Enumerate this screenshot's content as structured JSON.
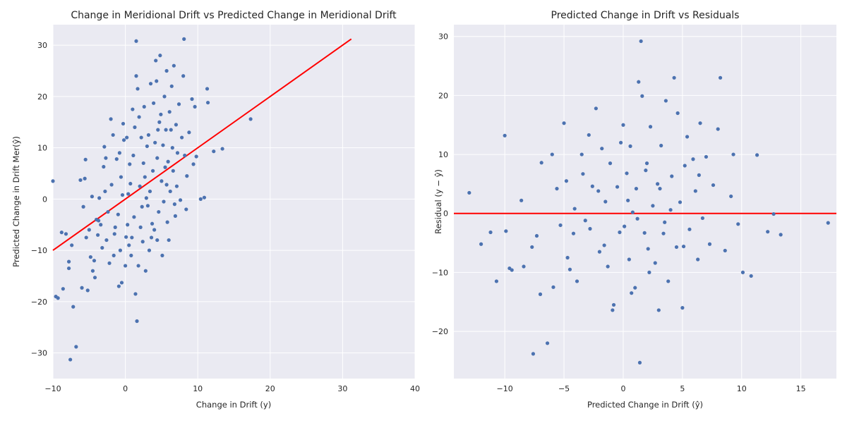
{
  "chart_data": [
    {
      "type": "scatter",
      "title": "Change in Meridional Drift vs Predicted Change in Meridional Drift",
      "xlabel": "Change in Drift (y)",
      "ylabel": "Predicted Change in Drift Mer(ŷ)",
      "xlim": [
        -10,
        40
      ],
      "ylim": [
        -35,
        34
      ],
      "xticks": [
        -10,
        0,
        10,
        20,
        30,
        40
      ],
      "yticks": [
        -30,
        -20,
        -10,
        0,
        10,
        20,
        30
      ],
      "grid": true,
      "point_color": "#4c72b0",
      "reference_line": {
        "color": "#ff0000",
        "x": [
          -10,
          31.2
        ],
        "y": [
          -10,
          31.2
        ]
      },
      "series": [
        {
          "values": [
            [
              -10,
              3.5
            ],
            [
              -9.6,
              -19
            ],
            [
              -9.3,
              -19.3
            ],
            [
              -8.8,
              -6.5
            ],
            [
              -8.6,
              -17.5
            ],
            [
              -7.8,
              -12.2
            ],
            [
              -7.8,
              -13.5
            ],
            [
              -7.6,
              -31.3
            ],
            [
              -7.4,
              -9
            ],
            [
              -7.2,
              -21
            ],
            [
              -6.8,
              -28.8
            ],
            [
              -6.2,
              3.7
            ],
            [
              -6,
              -17.3
            ],
            [
              -5.8,
              -1.5
            ],
            [
              -5.6,
              4
            ],
            [
              -5.4,
              -7.5
            ],
            [
              -5.2,
              -17.8
            ],
            [
              -5,
              -6
            ],
            [
              -4.8,
              -11.3
            ],
            [
              -4.6,
              0.5
            ],
            [
              -4.5,
              -14
            ],
            [
              -4.3,
              -12
            ],
            [
              -4.2,
              -15.3
            ],
            [
              -4,
              -4
            ],
            [
              -3.8,
              -7
            ],
            [
              -3.6,
              0.2
            ],
            [
              -3.4,
              -5
            ],
            [
              -3.2,
              -9.5
            ],
            [
              -3,
              6.3
            ],
            [
              -2.9,
              10.2
            ],
            [
              -2.8,
              1.5
            ],
            [
              -2.6,
              -8
            ],
            [
              -2.4,
              -2.5
            ],
            [
              -2.2,
              -12.5
            ],
            [
              -2,
              15.6
            ],
            [
              -1.9,
              2.8
            ],
            [
              -1.7,
              12.5
            ],
            [
              -1.6,
              -11
            ],
            [
              -1.4,
              -5.5
            ],
            [
              -1.2,
              7.8
            ],
            [
              -1,
              -3
            ],
            [
              -0.9,
              -17
            ],
            [
              -0.8,
              9
            ],
            [
              -0.7,
              -10
            ],
            [
              -0.5,
              -16.3
            ],
            [
              -0.3,
              14.7
            ],
            [
              -0.2,
              11.5
            ],
            [
              0,
              -13
            ],
            [
              0.2,
              12
            ],
            [
              0.3,
              -5
            ],
            [
              0.4,
              1
            ],
            [
              0.5,
              -9
            ],
            [
              0.6,
              6.8
            ],
            [
              0.7,
              3
            ],
            [
              0.8,
              -11
            ],
            [
              1,
              17.5
            ],
            [
              1.1,
              8.5
            ],
            [
              1.2,
              -3.5
            ],
            [
              1.3,
              14
            ],
            [
              1.5,
              30.8
            ],
            [
              1.5,
              24
            ],
            [
              1.6,
              -23.8
            ],
            [
              1.7,
              21.5
            ],
            [
              1.8,
              -13
            ],
            [
              1.9,
              16
            ],
            [
              2,
              2.5
            ],
            [
              2.1,
              -5.5
            ],
            [
              2.2,
              12
            ],
            [
              2.4,
              -8.3
            ],
            [
              2.5,
              7
            ],
            [
              2.6,
              18
            ],
            [
              2.7,
              4.3
            ],
            [
              2.8,
              -14
            ],
            [
              3,
              10.3
            ],
            [
              3.1,
              -1.3
            ],
            [
              3.2,
              12.5
            ],
            [
              3.3,
              -10
            ],
            [
              3.4,
              1.5
            ],
            [
              3.5,
              22.5
            ],
            [
              3.6,
              -7.5
            ],
            [
              3.8,
              5.5
            ],
            [
              3.9,
              18.7
            ],
            [
              4,
              -6
            ],
            [
              4.1,
              11
            ],
            [
              4.2,
              27
            ],
            [
              4.3,
              23
            ],
            [
              4.4,
              8
            ],
            [
              4.5,
              13.5
            ],
            [
              4.6,
              -2.5
            ],
            [
              4.7,
              15
            ],
            [
              4.8,
              28
            ],
            [
              4.9,
              16.5
            ],
            [
              5,
              3.5
            ],
            [
              5.1,
              -11
            ],
            [
              5.2,
              10.5
            ],
            [
              5.3,
              -0.5
            ],
            [
              5.4,
              20
            ],
            [
              5.5,
              6.2
            ],
            [
              5.6,
              13.5
            ],
            [
              5.7,
              25
            ],
            [
              5.8,
              -4.5
            ],
            [
              5.9,
              7.3
            ],
            [
              6,
              -8
            ],
            [
              6.1,
              17
            ],
            [
              6.2,
              1.5
            ],
            [
              6.3,
              13.5
            ],
            [
              6.4,
              22
            ],
            [
              6.5,
              10
            ],
            [
              6.6,
              5.5
            ],
            [
              6.7,
              26
            ],
            [
              6.8,
              -1
            ],
            [
              7,
              14.5
            ],
            [
              7.1,
              2.5
            ],
            [
              7.2,
              9
            ],
            [
              7.4,
              18.5
            ],
            [
              7.6,
              -0.2
            ],
            [
              7.8,
              12
            ],
            [
              8,
              24
            ],
            [
              8.1,
              31.2
            ],
            [
              8.2,
              8.5
            ],
            [
              8.4,
              -2
            ],
            [
              8.5,
              4.5
            ],
            [
              8.8,
              13
            ],
            [
              9.2,
              19.5
            ],
            [
              9.4,
              6.8
            ],
            [
              9.6,
              18
            ],
            [
              9.8,
              8.3
            ],
            [
              10.4,
              0
            ],
            [
              10.9,
              0.3
            ],
            [
              11.3,
              21.5
            ],
            [
              11.4,
              18.8
            ],
            [
              12.2,
              9.3
            ],
            [
              13.4,
              9.8
            ],
            [
              17.3,
              15.6
            ],
            [
              -8.2,
              -6.8
            ],
            [
              -5.5,
              7.7
            ],
            [
              -3.7,
              -4.2
            ],
            [
              -2.7,
              8
            ],
            [
              -1.5,
              -6.8
            ],
            [
              -0.6,
              4.3
            ],
            [
              0.1,
              -7.4
            ],
            [
              0.9,
              -7.5
            ],
            [
              2.3,
              -1.5
            ],
            [
              2.9,
              0.2
            ],
            [
              3.7,
              -4.8
            ],
            [
              4.4,
              -8
            ],
            [
              5.7,
              2.8
            ],
            [
              6.9,
              -3.3
            ],
            [
              1.4,
              -18.5
            ],
            [
              -0.4,
              0.8
            ]
          ]
        }
      ]
    },
    {
      "type": "scatter",
      "title": "Predicted Change in Drift vs Residuals",
      "xlabel": "Predicted Change in Drift (ŷ)",
      "ylabel": "Residual (y − ŷ)",
      "xlim": [
        -14.3,
        18
      ],
      "ylim": [
        -28,
        32
      ],
      "xticks": [
        -10,
        -5,
        0,
        5,
        10,
        15
      ],
      "yticks": [
        -20,
        -10,
        0,
        10,
        20,
        30
      ],
      "grid": true,
      "point_color": "#4c72b0",
      "reference_line": {
        "color": "#ff0000",
        "y": 0
      },
      "series": [
        {
          "values": [
            [
              -13,
              3.5
            ],
            [
              -12,
              -5.2
            ],
            [
              -11.2,
              -3.2
            ],
            [
              -10.7,
              -11.5
            ],
            [
              -10,
              13.2
            ],
            [
              -9.6,
              -9.3
            ],
            [
              -9.4,
              -9.6
            ],
            [
              -8.6,
              2.2
            ],
            [
              -8.4,
              -9
            ],
            [
              -7.6,
              -23.8
            ],
            [
              -7.3,
              -3.8
            ],
            [
              -7,
              -13.7
            ],
            [
              -6.4,
              -22
            ],
            [
              -6,
              10
            ],
            [
              -5.6,
              4.2
            ],
            [
              -5.3,
              -2
            ],
            [
              -5,
              15.3
            ],
            [
              -4.8,
              5.5
            ],
            [
              -4.5,
              -9.5
            ],
            [
              -4.1,
              0.8
            ],
            [
              -3.9,
              -11.5
            ],
            [
              -3.5,
              10
            ],
            [
              -3.2,
              -1.2
            ],
            [
              -2.9,
              13.3
            ],
            [
              -2.6,
              4.6
            ],
            [
              -2.3,
              17.8
            ],
            [
              -2,
              -6.5
            ],
            [
              -1.8,
              11
            ],
            [
              -1.5,
              2
            ],
            [
              -1.3,
              -9
            ],
            [
              -1.1,
              8.5
            ],
            [
              -0.8,
              -15.5
            ],
            [
              -0.5,
              4.5
            ],
            [
              -0.3,
              -3.2
            ],
            [
              -0.2,
              12
            ],
            [
              0,
              15
            ],
            [
              0.1,
              -2.2
            ],
            [
              0.3,
              6.8
            ],
            [
              0.5,
              -7.8
            ],
            [
              0.6,
              11.4
            ],
            [
              0.8,
              0.2
            ],
            [
              1,
              -12.6
            ],
            [
              1.1,
              4.2
            ],
            [
              1.3,
              22.3
            ],
            [
              1.4,
              -25.3
            ],
            [
              1.5,
              29.2
            ],
            [
              1.6,
              19.9
            ],
            [
              1.8,
              -3.3
            ],
            [
              2,
              8.5
            ],
            [
              2.2,
              -10
            ],
            [
              2.3,
              14.7
            ],
            [
              2.5,
              1.3
            ],
            [
              2.7,
              -8.4
            ],
            [
              2.9,
              5
            ],
            [
              3,
              -16.4
            ],
            [
              3.2,
              11.5
            ],
            [
              3.5,
              -1.5
            ],
            [
              3.6,
              19.1
            ],
            [
              3.8,
              -11.5
            ],
            [
              4.1,
              6.3
            ],
            [
              4.3,
              23
            ],
            [
              4.5,
              -5.7
            ],
            [
              4.6,
              17
            ],
            [
              4.8,
              1.9
            ],
            [
              5,
              -16
            ],
            [
              5.2,
              8.1
            ],
            [
              5.4,
              13
            ],
            [
              5.6,
              -2.7
            ],
            [
              5.9,
              9.2
            ],
            [
              6.1,
              3.8
            ],
            [
              6.3,
              -7.8
            ],
            [
              6.5,
              15.3
            ],
            [
              6.7,
              -0.8
            ],
            [
              7,
              9.6
            ],
            [
              7.3,
              -5.2
            ],
            [
              7.6,
              4.8
            ],
            [
              8,
              14.3
            ],
            [
              8.2,
              23
            ],
            [
              8.6,
              -6.3
            ],
            [
              9.1,
              2.9
            ],
            [
              9.3,
              10
            ],
            [
              9.7,
              -1.8
            ],
            [
              10.1,
              -10
            ],
            [
              10.8,
              -10.6
            ],
            [
              11.3,
              9.9
            ],
            [
              12.2,
              -3.1
            ],
            [
              12.7,
              -0.1
            ],
            [
              13.3,
              -3.6
            ],
            [
              17.3,
              -1.6
            ],
            [
              -9.9,
              -3
            ],
            [
              -7.7,
              -5.7
            ],
            [
              -6.9,
              8.6
            ],
            [
              -5.9,
              -12.5
            ],
            [
              -4.7,
              -7.5
            ],
            [
              -2.8,
              -2.6
            ],
            [
              -0.9,
              -16.4
            ],
            [
              0.7,
              -13.5
            ],
            [
              1.9,
              7.3
            ],
            [
              3.4,
              -3.4
            ],
            [
              5.1,
              -5.6
            ],
            [
              -3.4,
              6.7
            ],
            [
              -1.6,
              -5.4
            ],
            [
              0.4,
              2.2
            ],
            [
              2.1,
              -6
            ],
            [
              4,
              0.6
            ],
            [
              6.4,
              6.5
            ],
            [
              -4.2,
              -3.4
            ],
            [
              -2.1,
              3.8
            ],
            [
              1.2,
              -0.9
            ],
            [
              3.1,
              4.2
            ]
          ]
        }
      ]
    }
  ]
}
